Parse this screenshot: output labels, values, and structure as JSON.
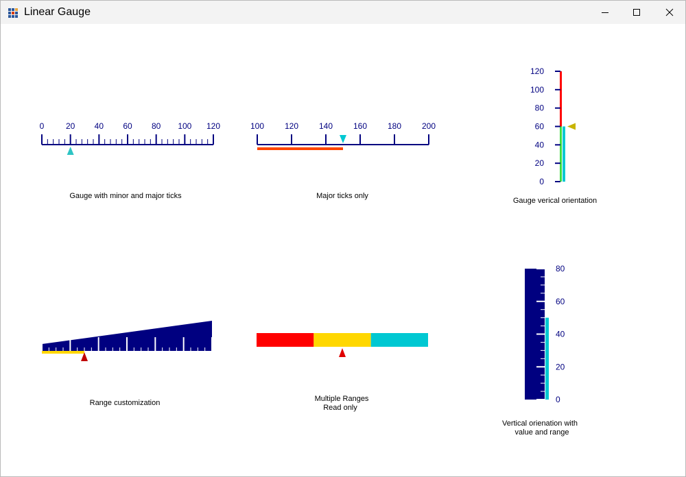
{
  "window": {
    "title": "Linear Gauge",
    "icon": "grid-app-icon"
  },
  "titlebar_buttons": {
    "minimize": "minimize-icon",
    "maximize": "maximize-icon",
    "close": "close-icon"
  },
  "colors": {
    "navy": "#000080",
    "teal": "#2ec4c4",
    "cyan": "#00c8d2",
    "orange_red": "#ff4500",
    "red": "#ff0000",
    "gold": "#ffd700",
    "green": "#40e040",
    "olive_yellow": "#c8b400",
    "dark_red": "#c00000"
  },
  "gauges": {
    "minor_major": {
      "caption": "Gauge with minor and major ticks",
      "min": 0,
      "max": 120,
      "major_step": 20,
      "minor_step": 4,
      "labels": [
        "0",
        "20",
        "40",
        "60",
        "80",
        "100",
        "120"
      ],
      "value": 20
    },
    "major_only": {
      "caption": "Major ticks only",
      "min": 100,
      "max": 200,
      "major_step": 20,
      "labels": [
        "100",
        "120",
        "140",
        "160",
        "180",
        "200"
      ],
      "value": 150,
      "range": [
        100,
        150
      ]
    },
    "vertical": {
      "caption": "Gauge verical orientation",
      "min": 0,
      "max": 120,
      "major_step": 20,
      "labels": [
        "0",
        "20",
        "40",
        "60",
        "80",
        "100",
        "120"
      ],
      "value": 60,
      "ranges": [
        {
          "from": 0,
          "to": 60,
          "color": "#40e040"
        },
        {
          "from": 60,
          "to": 120,
          "color": "#ff0000"
        }
      ],
      "bar": [
        0,
        60
      ]
    },
    "range_custom": {
      "caption": "Range customization",
      "min": 0,
      "max": 120,
      "major_step": 20,
      "minor_step": 5,
      "value": 30,
      "range": [
        0,
        30
      ]
    },
    "multiple_ranges": {
      "caption_line1": "Multiple Ranges",
      "caption_line2": "Read only",
      "min": 0,
      "max": 150,
      "value": 75,
      "ranges": [
        {
          "from": 0,
          "to": 50,
          "color": "#ff0000"
        },
        {
          "from": 50,
          "to": 100,
          "color": "#ffd700"
        },
        {
          "from": 100,
          "to": 150,
          "color": "#00c8d2"
        }
      ]
    },
    "vertical_value": {
      "caption_line1": "Vertical orienation with",
      "caption_line2": "value and range",
      "min": 0,
      "max": 80,
      "major_step": 20,
      "minor_step": 5,
      "labels": [
        "0",
        "20",
        "40",
        "60",
        "80"
      ],
      "value": 50
    }
  }
}
